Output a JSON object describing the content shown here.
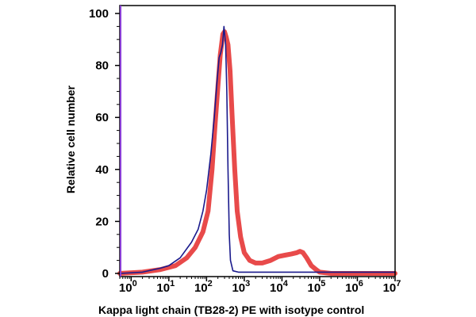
{
  "chart_data": {
    "type": "line",
    "xlabel": "Kappa light chain (TB28-2) PE with isotype control",
    "ylabel": "Relative cell number",
    "x_scale": "log",
    "xlim": [
      0.5,
      10000000
    ],
    "ylim": [
      0,
      100
    ],
    "x_tick_base": "10",
    "x_tick_exponents": [
      "0",
      "1",
      "2",
      "3",
      "4",
      "5",
      "6",
      "7"
    ],
    "y_ticks": [
      "0",
      "20",
      "40",
      "60",
      "80",
      "100"
    ],
    "grid": false,
    "legend": "none",
    "series": [
      {
        "color": "#e84a4a",
        "points": [
          [
            0.5,
            0
          ],
          [
            2,
            0.5
          ],
          [
            6,
            1.5
          ],
          [
            15,
            3
          ],
          [
            30,
            6
          ],
          [
            50,
            10
          ],
          [
            80,
            16
          ],
          [
            110,
            24
          ],
          [
            140,
            40
          ],
          [
            170,
            58
          ],
          [
            200,
            72
          ],
          [
            230,
            84
          ],
          [
            270,
            92
          ],
          [
            300,
            93
          ],
          [
            330,
            91
          ],
          [
            370,
            88
          ],
          [
            420,
            78
          ],
          [
            480,
            60
          ],
          [
            560,
            40
          ],
          [
            650,
            24
          ],
          [
            800,
            14
          ],
          [
            1000,
            8
          ],
          [
            1400,
            5
          ],
          [
            2000,
            4
          ],
          [
            3000,
            4
          ],
          [
            5000,
            5
          ],
          [
            8000,
            6.5
          ],
          [
            12000,
            7
          ],
          [
            18000,
            7.5
          ],
          [
            25000,
            8
          ],
          [
            30000,
            8.5
          ],
          [
            36000,
            8
          ],
          [
            45000,
            6
          ],
          [
            60000,
            3
          ],
          [
            80000,
            1.5
          ],
          [
            100000,
            0.5
          ],
          [
            200000,
            0
          ],
          [
            10000000,
            0
          ]
        ]
      },
      {
        "color": "#1a1a8c",
        "points": [
          [
            0.5,
            0
          ],
          [
            2,
            0.5
          ],
          [
            6,
            2
          ],
          [
            10,
            3
          ],
          [
            20,
            6
          ],
          [
            40,
            12
          ],
          [
            60,
            17
          ],
          [
            80,
            24
          ],
          [
            100,
            32
          ],
          [
            130,
            46
          ],
          [
            160,
            60
          ],
          [
            190,
            74
          ],
          [
            215,
            83
          ],
          [
            240,
            85
          ],
          [
            265,
            88
          ],
          [
            290,
            95
          ],
          [
            320,
            88
          ],
          [
            345,
            70
          ],
          [
            370,
            40
          ],
          [
            400,
            15
          ],
          [
            430,
            5
          ],
          [
            500,
            1
          ],
          [
            700,
            0.5
          ],
          [
            10000000,
            0.5
          ]
        ]
      }
    ]
  }
}
